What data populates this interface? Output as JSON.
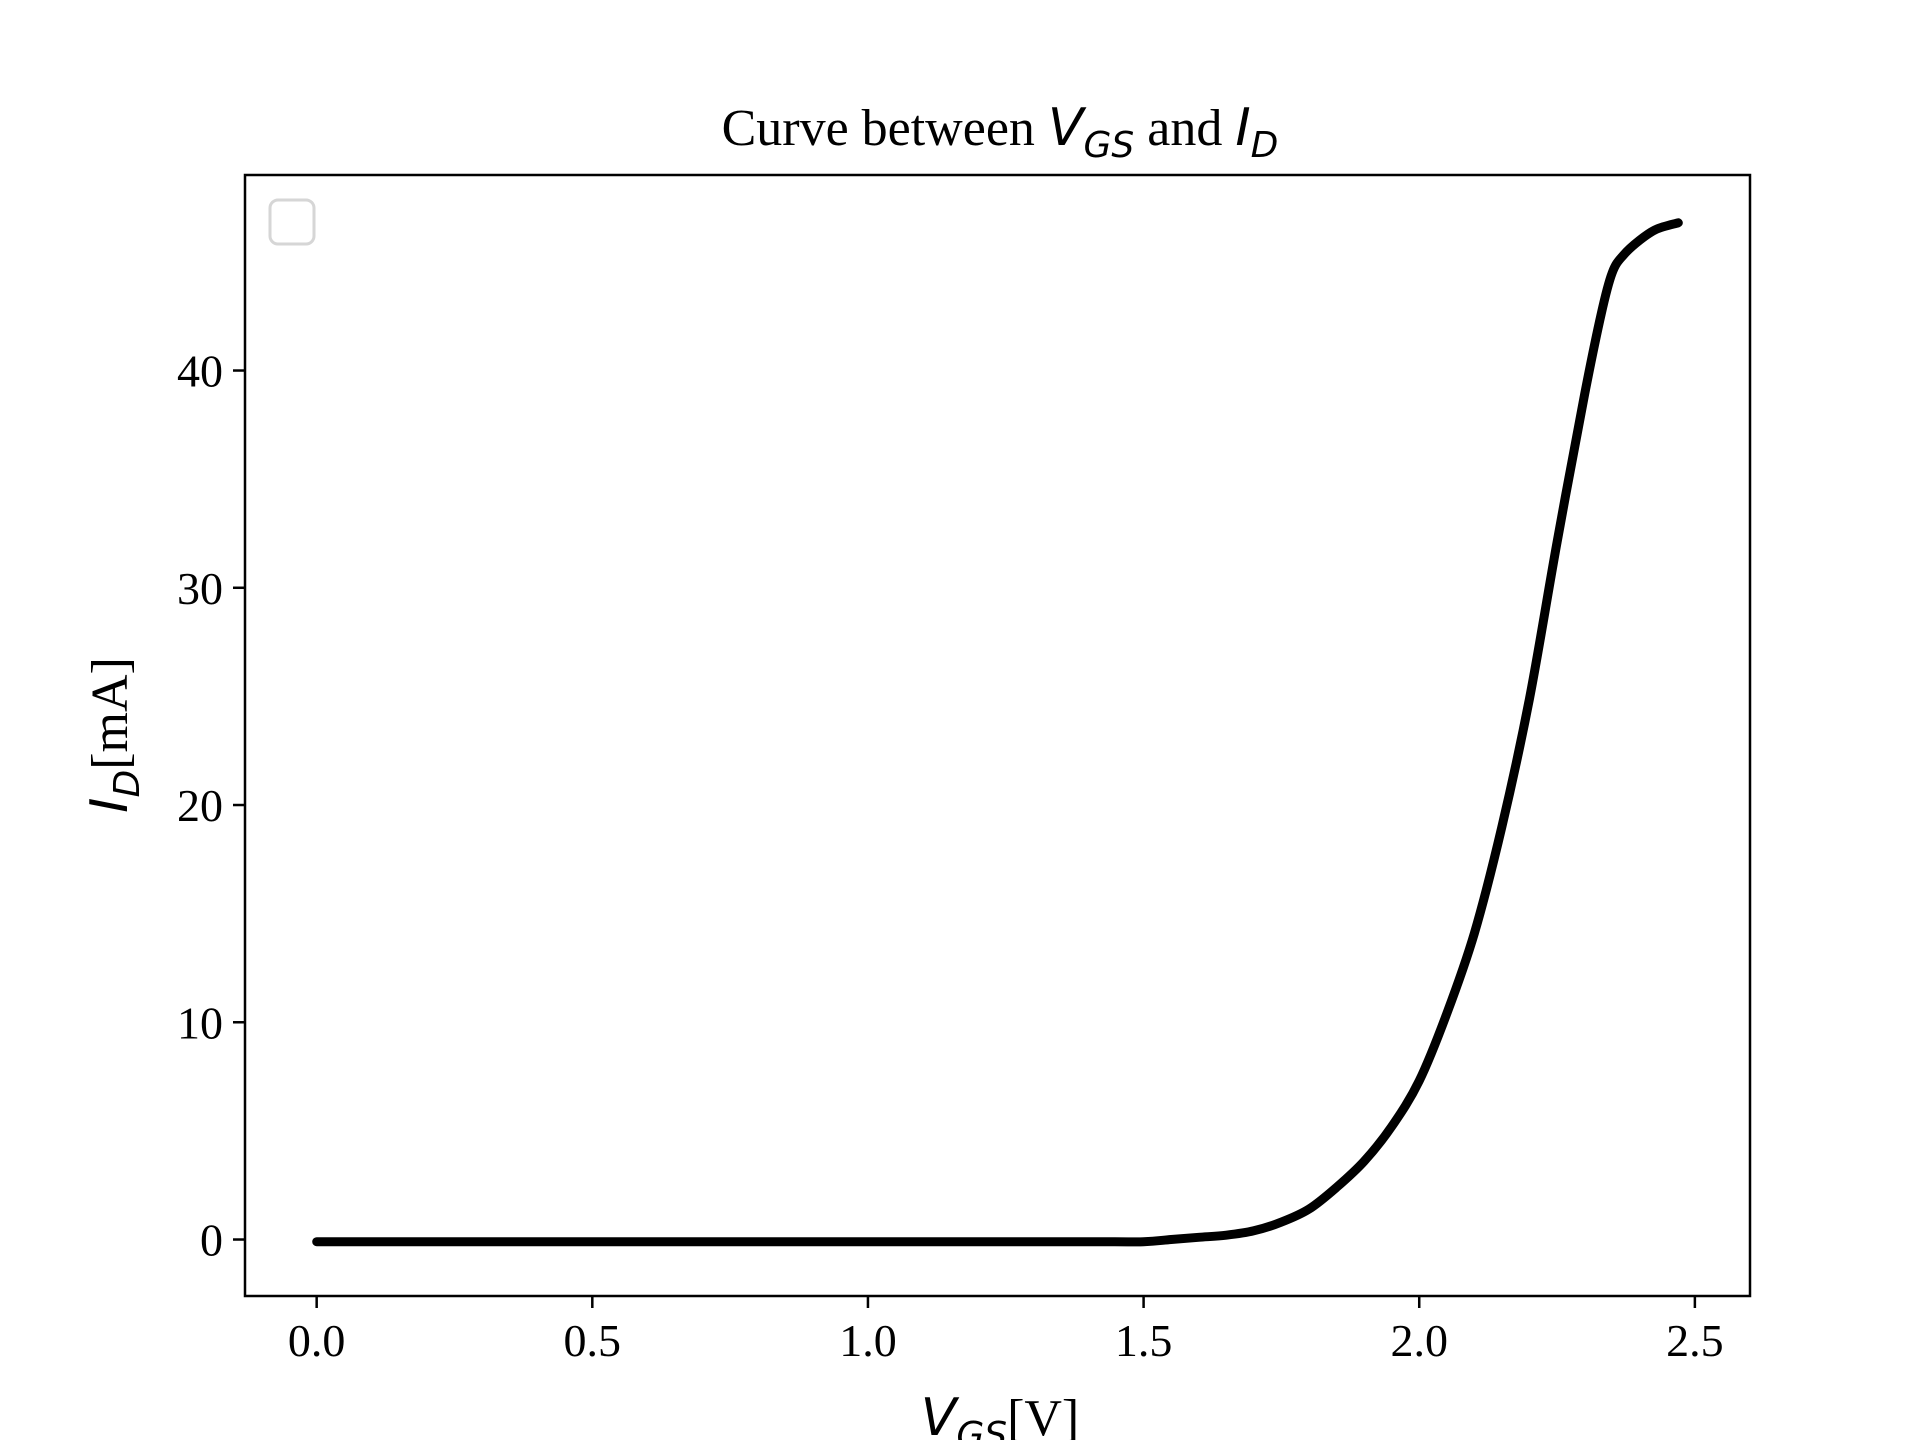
{
  "chart_data": {
    "type": "line",
    "title": {
      "prefix": "Curve between ",
      "var1": "V",
      "var1_sub": "GS",
      "middle": " and ",
      "var2": "I",
      "var2_sub": "D"
    },
    "xlabel": {
      "var": "V",
      "sub": "GS",
      "unit": "[V]"
    },
    "ylabel": {
      "var": "I",
      "sub": "D",
      "unit": "[mA]"
    },
    "xlim": [
      -0.13,
      2.6
    ],
    "ylim": [
      -2.6,
      49
    ],
    "xticks": [
      "0.0",
      "0.5",
      "1.0",
      "1.5",
      "2.0",
      "2.5"
    ],
    "yticks": [
      "0",
      "10",
      "20",
      "30",
      "40"
    ],
    "grid": false,
    "legend": "top-left (empty)",
    "series": [
      {
        "color": "#000000",
        "x": [
          0.0,
          0.2,
          0.4,
          0.6,
          0.8,
          1.0,
          1.2,
          1.4,
          1.5,
          1.55,
          1.6,
          1.65,
          1.7,
          1.75,
          1.8,
          1.85,
          1.9,
          1.95,
          2.0,
          2.05,
          2.1,
          2.15,
          2.2,
          2.25,
          2.3,
          2.33,
          2.35,
          2.37,
          2.4,
          2.43,
          2.47
        ],
        "y": [
          -0.1,
          -0.1,
          -0.1,
          -0.1,
          -0.1,
          -0.1,
          -0.1,
          -0.1,
          -0.1,
          0.0,
          0.1,
          0.2,
          0.4,
          0.8,
          1.4,
          2.4,
          3.6,
          5.2,
          7.3,
          10.4,
          14.1,
          19.0,
          24.9,
          32.1,
          38.9,
          42.6,
          44.5,
          45.3,
          46.0,
          46.5,
          46.8
        ]
      }
    ]
  }
}
